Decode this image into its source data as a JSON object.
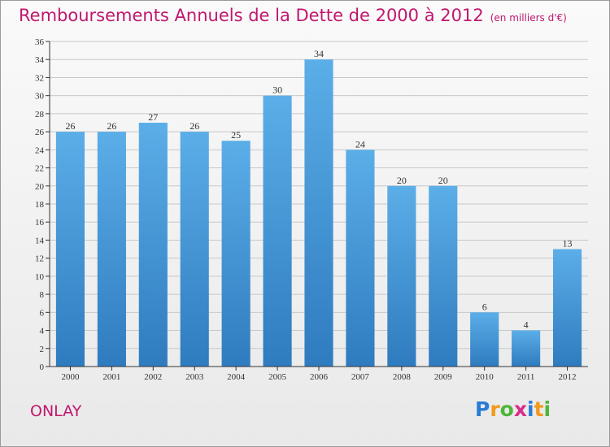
{
  "title": "Remboursements Annuels de la Dette de 2000 à 2012",
  "unit_note": "(en milliers d'€)",
  "commune": "ONLAY",
  "brand": {
    "letters": [
      "P",
      "r",
      "o",
      "x",
      "i",
      "t",
      "i"
    ],
    "colors": [
      "#2a7bd4",
      "#f29a1c",
      "#4fb53a",
      "#d92c8a",
      "#2a7bd4",
      "#f29a1c",
      "#4fb53a"
    ]
  },
  "colors": {
    "title": "#c0176e",
    "bar_top": "#5baee8",
    "bar_bottom": "#2f7bbf",
    "grid": "#c8c8c8",
    "axis": "#333333"
  },
  "chart_data": {
    "type": "bar",
    "categories": [
      "2000",
      "2001",
      "2002",
      "2003",
      "2004",
      "2005",
      "2006",
      "2007",
      "2008",
      "2009",
      "2010",
      "2011",
      "2012"
    ],
    "values": [
      26,
      26,
      27,
      26,
      25,
      30,
      34,
      24,
      20,
      20,
      6,
      4,
      13
    ],
    "ylim": [
      0,
      36
    ],
    "yticks": [
      0,
      2,
      4,
      6,
      8,
      10,
      12,
      14,
      16,
      18,
      20,
      22,
      24,
      26,
      28,
      30,
      32,
      34,
      36
    ],
    "grid": true,
    "data_labels": true
  }
}
